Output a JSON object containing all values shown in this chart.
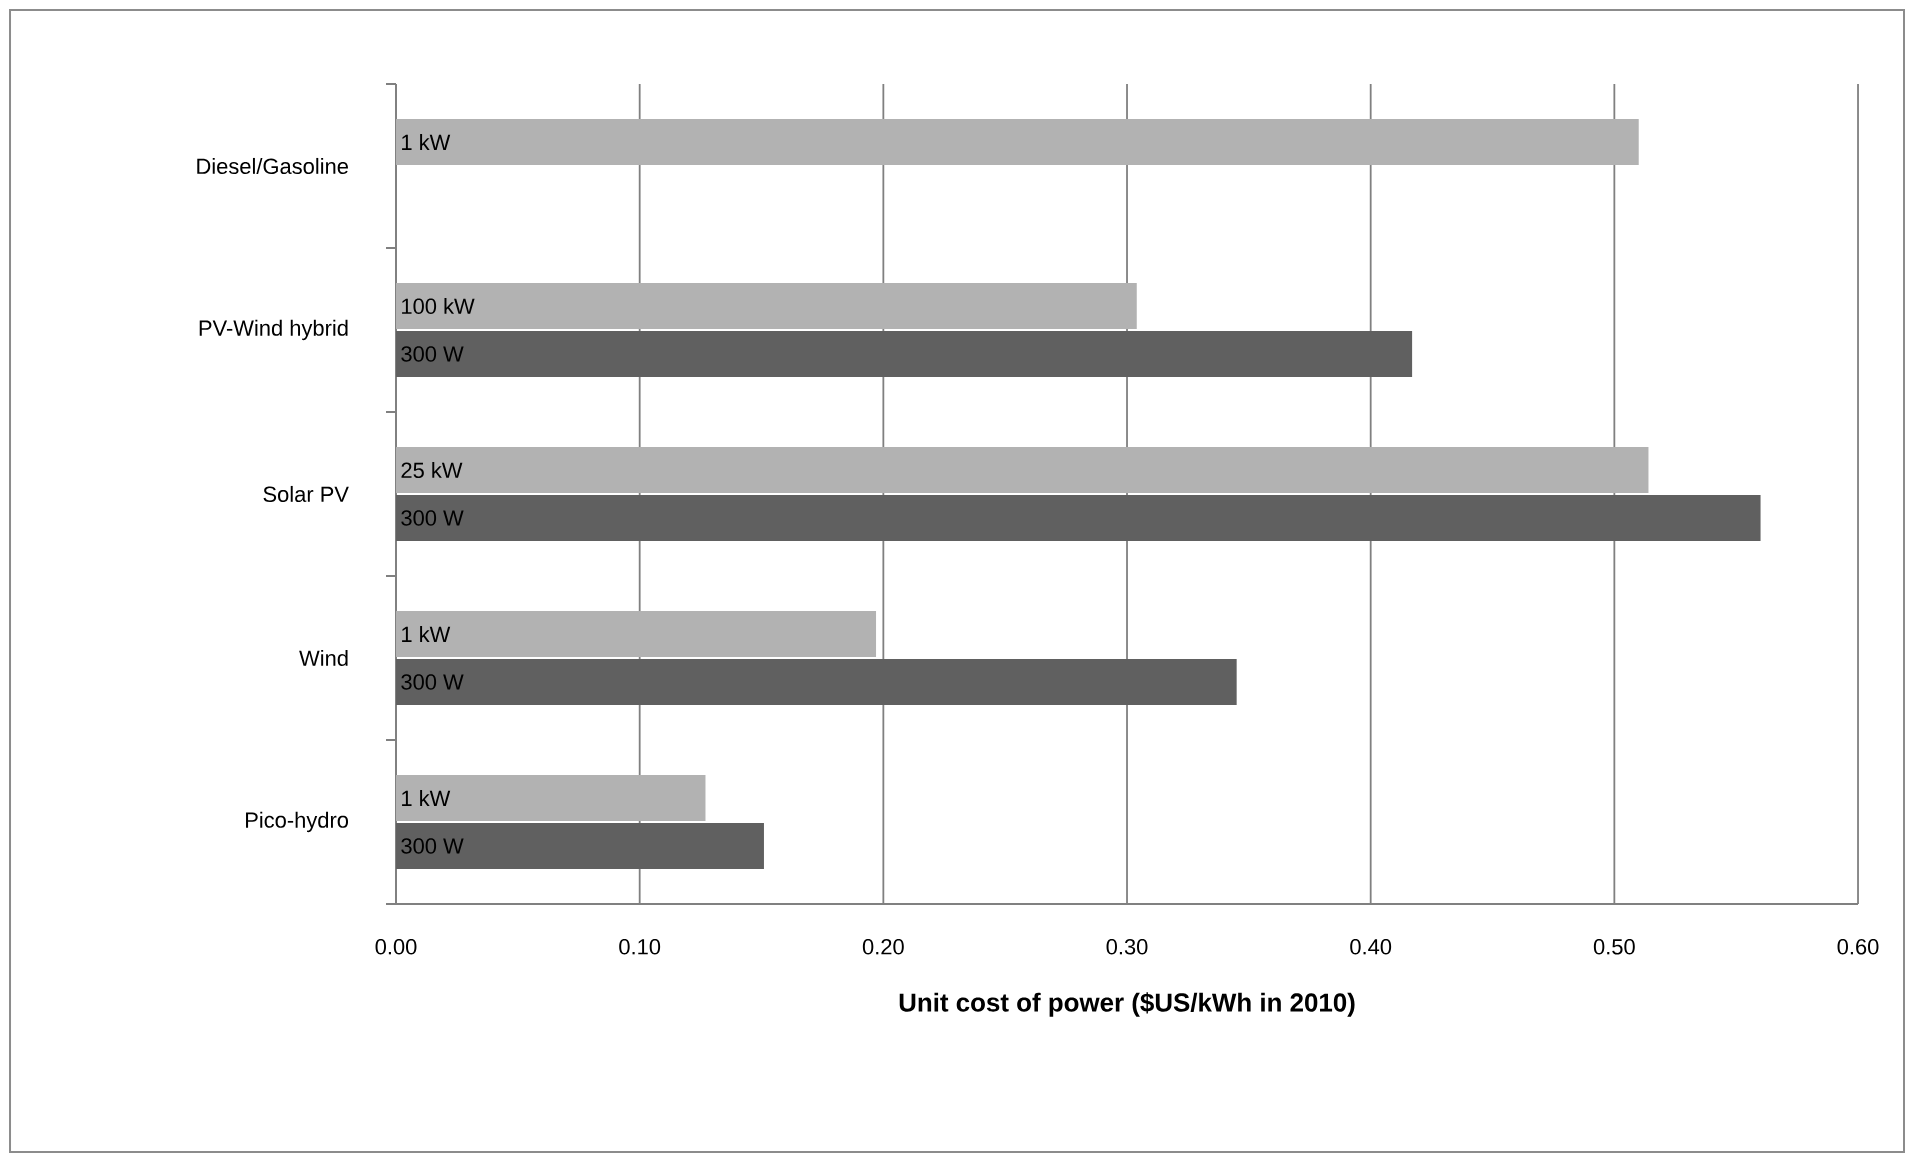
{
  "chart_data": {
    "type": "bar",
    "orientation": "horizontal",
    "xlabel": "Unit cost of power ($US/kWh in 2010)",
    "categories": [
      "Diesel/Gasoline",
      "PV-Wind hybrid",
      "Solar PV",
      "Wind",
      "Pico-hydro"
    ],
    "series": [
      {
        "color": "#b2b2b2",
        "values": [
          0.51,
          0.304,
          0.514,
          0.197,
          0.127
        ]
      },
      {
        "color": "#606060",
        "values": [
          null,
          0.417,
          0.56,
          0.345,
          0.151
        ]
      }
    ],
    "annotations": [
      "1 kW",
      "100 kW",
      "300 W",
      "25 kW",
      "300 W",
      "1 kW",
      "300 W",
      "1 kW",
      "300 W"
    ],
    "xlim": [
      0,
      0.6
    ],
    "xticks": [
      {
        "value": 0,
        "label": "0.00"
      },
      {
        "value": 0.1,
        "label": "0.10"
      },
      {
        "value": 0.2,
        "label": "0.20"
      },
      {
        "value": 0.3,
        "label": "0.30"
      },
      {
        "value": 0.4,
        "label": "0.40"
      },
      {
        "value": 0.5,
        "label": "0.50"
      },
      {
        "value": 0.6,
        "label": "0.60"
      }
    ],
    "grid": "x"
  }
}
